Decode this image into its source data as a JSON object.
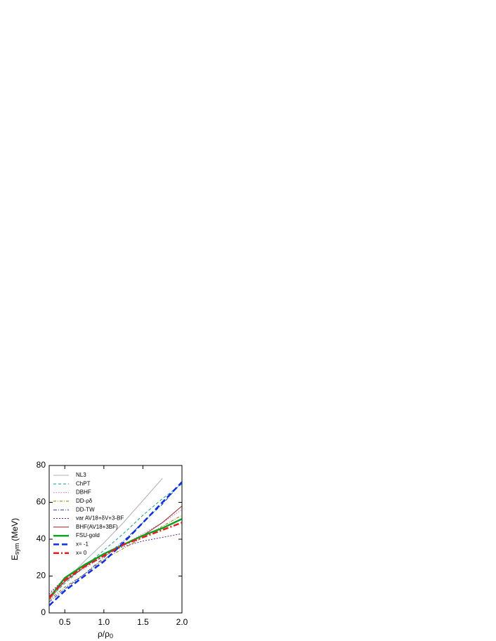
{
  "chart_data": {
    "type": "line",
    "x_label": {
      "main": "ρ/ρ",
      "sub": "0"
    },
    "y_label": {
      "main": "E",
      "sub": "sym",
      "unit": "(MeV)"
    },
    "xlim": [
      0.3,
      2.0
    ],
    "ylim": [
      0,
      80
    ],
    "xticks": [
      0.5,
      {
        "value": 1.0,
        "label": "1.0"
      },
      1.5,
      {
        "value": 2.0,
        "label": "2.0"
      }
    ],
    "yticks": [
      0,
      20,
      40,
      60,
      80
    ],
    "legend": "upper left",
    "x": [
      0.3,
      0.5,
      0.75,
      1.0,
      1.25,
      1.5,
      1.75,
      2.0
    ],
    "series": [
      {
        "name": "NL3",
        "color": "#b0b0b0",
        "width": 1,
        "dash": "",
        "values": [
          7,
          17,
          28,
          38,
          49,
          61,
          73,
          null
        ]
      },
      {
        "name": "ChPT",
        "color": "#1a9a8a",
        "width": 1,
        "dash": "4,3",
        "values": [
          8,
          16,
          25,
          34,
          43,
          53,
          62,
          70
        ]
      },
      {
        "name": "DBHF",
        "color": "#e070c0",
        "width": 1,
        "dash": "1.5,2",
        "values": [
          11,
          18,
          24,
          31,
          37,
          43,
          49,
          56
        ]
      },
      {
        "name": "DD-ρδ",
        "color": "#8a7a00",
        "width": 1,
        "dash": "4,2,1,2",
        "values": [
          7,
          14,
          21,
          29,
          35,
          41,
          47,
          53
        ]
      },
      {
        "name": "DD-TW",
        "color": "#2040c0",
        "width": 1,
        "dash": "5,2,1,2",
        "values": [
          6,
          13,
          21,
          30,
          39,
          49,
          59,
          71
        ]
      },
      {
        "name": "var AV18+δV+3-BF",
        "color": "#6020a0",
        "width": 1,
        "dash": "2,2",
        "values": [
          10,
          19,
          26,
          32,
          36,
          39,
          41,
          43
        ]
      },
      {
        "name": "BHF(AV18+3BF)",
        "color": "#902020",
        "width": 1,
        "dash": "",
        "values": [
          9,
          17,
          25,
          32,
          37,
          42,
          49,
          58
        ]
      },
      {
        "name": "FSU-gold",
        "color": "#10a020",
        "width": 2.5,
        "dash": "",
        "values": [
          8,
          19,
          26,
          32,
          37,
          42,
          46,
          51
        ]
      },
      {
        "name": "x= -1",
        "color": "#1030e0",
        "width": 2.5,
        "dash": "8,4",
        "values": [
          4,
          12,
          20,
          28,
          38,
          49,
          60,
          71
        ]
      },
      {
        "name": "x= 0",
        "color": "#e02020",
        "width": 2.5,
        "dash": "8,3,2,3",
        "values": [
          8,
          18,
          25,
          31,
          37,
          41,
          45,
          49
        ]
      }
    ]
  }
}
